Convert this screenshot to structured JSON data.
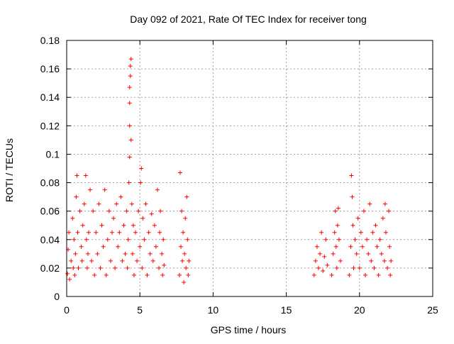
{
  "chart_data": {
    "type": "scatter",
    "title": "Day 092 of 2021, Rate Of TEC Index for receiver tong",
    "xlabel": "GPS time / hours",
    "ylabel": "ROTI / TECUs",
    "xlim": [
      0,
      25
    ],
    "ylim": [
      0,
      0.18
    ],
    "xticks": [
      0,
      5,
      10,
      15,
      20,
      25
    ],
    "yticks": [
      0,
      0.02,
      0.04,
      0.06,
      0.08,
      0.1,
      0.12,
      0.14,
      0.16,
      0.18
    ],
    "xtick_labels": [
      "0",
      "5",
      "10",
      "15",
      "20",
      "25"
    ],
    "ytick_labels": [
      "0",
      "0.02",
      "0.04",
      "0.06",
      "0.08",
      "0.1",
      "0.12",
      "0.14",
      "0.16",
      "0.18"
    ],
    "grid": true,
    "legend": "none",
    "marker": "+",
    "series_color": "#ff0000",
    "series": [
      {
        "points": [
          [
            0.05,
            0.016
          ],
          [
            0.1,
            0.033
          ],
          [
            0.15,
            0.045
          ],
          [
            0.2,
            0.012
          ],
          [
            0.3,
            0.025
          ],
          [
            0.4,
            0.055
          ],
          [
            0.45,
            0.02
          ],
          [
            0.5,
            0.04
          ],
          [
            0.55,
            0.015
          ],
          [
            0.6,
            0.03
          ],
          [
            0.65,
            0.07
          ],
          [
            0.7,
            0.085
          ],
          [
            0.75,
            0.045
          ],
          [
            0.8,
            0.02
          ],
          [
            0.9,
            0.06
          ],
          [
            1.0,
            0.035
          ],
          [
            1.05,
            0.025
          ],
          [
            1.1,
            0.05
          ],
          [
            1.2,
            0.065
          ],
          [
            1.3,
            0.085
          ],
          [
            1.35,
            0.04
          ],
          [
            1.4,
            0.02
          ],
          [
            1.45,
            0.03
          ],
          [
            1.5,
            0.045
          ],
          [
            1.6,
            0.075
          ],
          [
            1.7,
            0.025
          ],
          [
            1.8,
            0.06
          ],
          [
            1.9,
            0.015
          ],
          [
            2.0,
            0.045
          ],
          [
            2.1,
            0.03
          ],
          [
            2.2,
            0.065
          ],
          [
            2.3,
            0.02
          ],
          [
            2.4,
            0.05
          ],
          [
            2.5,
            0.035
          ],
          [
            2.6,
            0.075
          ],
          [
            2.7,
            0.015
          ],
          [
            2.8,
            0.04
          ],
          [
            2.9,
            0.06
          ],
          [
            3.0,
            0.025
          ],
          [
            3.1,
            0.045
          ],
          [
            3.2,
            0.055
          ],
          [
            3.3,
            0.02
          ],
          [
            3.4,
            0.065
          ],
          [
            3.5,
            0.035
          ],
          [
            3.6,
            0.045
          ],
          [
            3.7,
            0.07
          ],
          [
            3.8,
            0.025
          ],
          [
            3.9,
            0.05
          ],
          [
            4.0,
            0.03
          ],
          [
            4.1,
            0.06
          ],
          [
            4.15,
            0.02
          ],
          [
            4.2,
            0.04
          ],
          [
            4.25,
            0.08
          ],
          [
            4.3,
            0.098
          ],
          [
            4.3,
            0.12
          ],
          [
            4.3,
            0.136
          ],
          [
            4.3,
            0.147
          ],
          [
            4.35,
            0.155
          ],
          [
            4.35,
            0.162
          ],
          [
            4.4,
            0.167
          ],
          [
            4.4,
            0.11
          ],
          [
            4.45,
            0.065
          ],
          [
            4.5,
            0.03
          ],
          [
            4.55,
            0.05
          ],
          [
            4.6,
            0.015
          ],
          [
            4.7,
            0.045
          ],
          [
            4.8,
            0.025
          ],
          [
            4.9,
            0.06
          ],
          [
            5.0,
            0.035
          ],
          [
            5.05,
            0.08
          ],
          [
            5.1,
            0.09
          ],
          [
            5.15,
            0.02
          ],
          [
            5.2,
            0.055
          ],
          [
            5.3,
            0.04
          ],
          [
            5.4,
            0.065
          ],
          [
            5.5,
            0.015
          ],
          [
            5.6,
            0.045
          ],
          [
            5.7,
            0.03
          ],
          [
            5.8,
            0.058
          ],
          [
            5.9,
            0.025
          ],
          [
            6.0,
            0.05
          ],
          [
            6.1,
            0.035
          ],
          [
            6.2,
            0.075
          ],
          [
            6.3,
            0.02
          ],
          [
            6.35,
            0.045
          ],
          [
            6.4,
            0.06
          ],
          [
            6.5,
            0.03
          ],
          [
            6.55,
            0.015
          ],
          [
            6.6,
            0.04
          ],
          [
            6.65,
            0.022
          ],
          [
            7.7,
            0.015
          ],
          [
            7.75,
            0.087
          ],
          [
            7.8,
            0.035
          ],
          [
            7.85,
            0.06
          ],
          [
            7.9,
            0.025
          ],
          [
            7.95,
            0.045
          ],
          [
            8.0,
            0.01
          ],
          [
            8.05,
            0.03
          ],
          [
            8.1,
            0.055
          ],
          [
            8.15,
            0.02
          ],
          [
            8.2,
            0.07
          ],
          [
            8.25,
            0.04
          ],
          [
            8.3,
            0.015
          ],
          [
            8.35,
            0.025
          ],
          [
            16.9,
            0.015
          ],
          [
            17.0,
            0.025
          ],
          [
            17.1,
            0.035
          ],
          [
            17.2,
            0.02
          ],
          [
            17.3,
            0.03
          ],
          [
            17.4,
            0.045
          ],
          [
            17.5,
            0.018
          ],
          [
            17.6,
            0.028
          ],
          [
            17.7,
            0.04
          ],
          [
            17.8,
            0.022
          ],
          [
            18.1,
            0.015
          ],
          [
            18.2,
            0.03
          ],
          [
            18.3,
            0.045
          ],
          [
            18.35,
            0.06
          ],
          [
            18.4,
            0.035
          ],
          [
            18.45,
            0.02
          ],
          [
            18.5,
            0.05
          ],
          [
            18.55,
            0.062
          ],
          [
            18.6,
            0.04
          ],
          [
            18.7,
            0.025
          ],
          [
            19.3,
            0.015
          ],
          [
            19.4,
            0.035
          ],
          [
            19.45,
            0.085
          ],
          [
            19.5,
            0.07
          ],
          [
            19.55,
            0.05
          ],
          [
            19.6,
            0.02
          ],
          [
            19.7,
            0.04
          ],
          [
            19.8,
            0.03
          ],
          [
            19.9,
            0.055
          ],
          [
            20.0,
            0.02
          ],
          [
            20.1,
            0.045
          ],
          [
            20.2,
            0.035
          ],
          [
            20.3,
            0.06
          ],
          [
            20.4,
            0.015
          ],
          [
            20.5,
            0.04
          ],
          [
            20.6,
            0.03
          ],
          [
            20.7,
            0.065
          ],
          [
            20.8,
            0.025
          ],
          [
            20.9,
            0.045
          ],
          [
            21.0,
            0.02
          ],
          [
            21.1,
            0.05
          ],
          [
            21.2,
            0.035
          ],
          [
            21.3,
            0.015
          ],
          [
            21.4,
            0.04
          ],
          [
            21.5,
            0.03
          ],
          [
            21.6,
            0.055
          ],
          [
            21.7,
            0.025
          ],
          [
            21.75,
            0.065
          ],
          [
            21.8,
            0.045
          ],
          [
            21.9,
            0.02
          ],
          [
            22.0,
            0.06
          ],
          [
            22.05,
            0.035
          ],
          [
            22.1,
            0.015
          ],
          [
            22.15,
            0.025
          ]
        ]
      }
    ]
  }
}
